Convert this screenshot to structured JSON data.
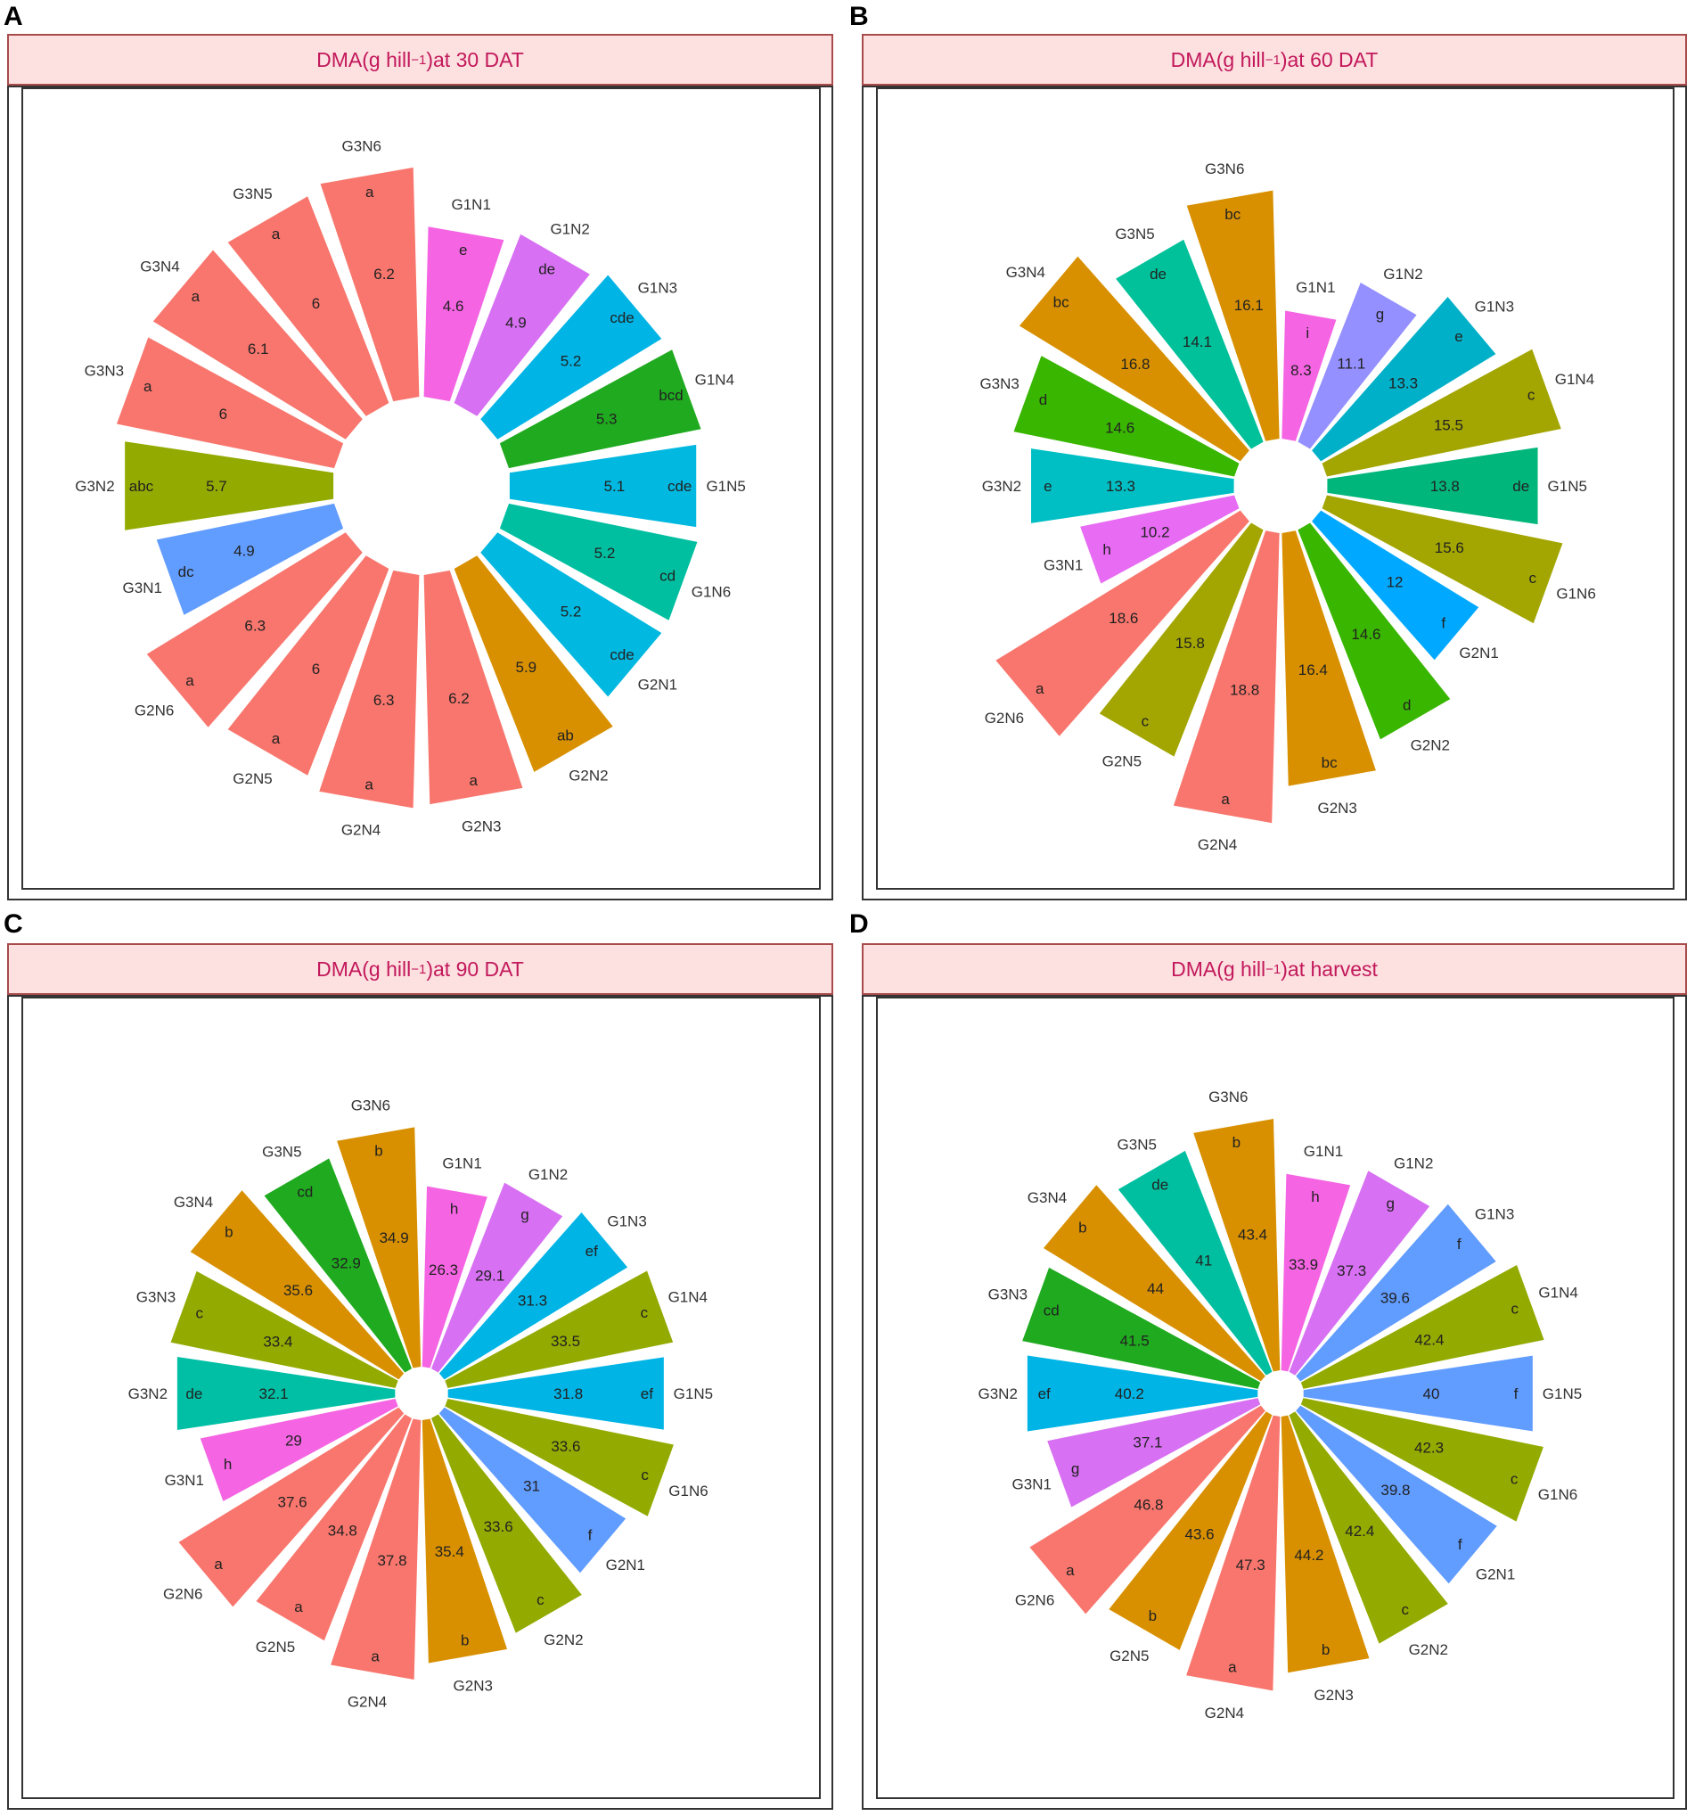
{
  "panels": [
    {
      "letter": "A",
      "title_main": "DMA(g hill",
      "title_sup": "−1",
      "title_tail": ")at 30 DAT"
    },
    {
      "letter": "B",
      "title_main": "DMA(g hill",
      "title_sup": "−1",
      "title_tail": ")at 60 DAT"
    },
    {
      "letter": "C",
      "title_main": "DMA(g hill",
      "title_sup": "−1",
      "title_tail": ")at 90 DAT"
    },
    {
      "letter": "D",
      "title_main": "DMA(g hill",
      "title_sup": "−1",
      "title_tail": ")at harvest"
    }
  ],
  "chart_data": [
    {
      "type": "bar",
      "polar": true,
      "categories": [
        "G1N1",
        "G1N2",
        "G1N3",
        "G1N4",
        "G1N5",
        "G1N6",
        "G2N1",
        "G2N2",
        "G2N3",
        "G2N4",
        "G2N5",
        "G2N6",
        "G3N1",
        "G3N2",
        "G3N3",
        "G3N4",
        "G3N5",
        "G3N6"
      ],
      "values": [
        4.6,
        4.9,
        5.2,
        5.3,
        5.1,
        5.2,
        5.2,
        5.9,
        6.2,
        6.3,
        6,
        6.3,
        4.9,
        5.7,
        6,
        6.1,
        6,
        6.2
      ],
      "value_labels": [
        "4.6",
        "4.9",
        "5.2",
        "5.3",
        "5.1",
        "5.2",
        "5.2",
        "5.9",
        "6.2",
        "6.3",
        "6",
        "6.3",
        "4.9",
        "5.7",
        "6",
        "6.1",
        "6",
        "6.2"
      ],
      "letters": [
        "e",
        "de",
        "cde",
        "bcd",
        "cde",
        "cd",
        "cde",
        "ab",
        "a",
        "a",
        "a",
        "a",
        "dc",
        "abc",
        "a",
        "a",
        "a",
        "a"
      ],
      "colors": [
        "#f564e3",
        "#d770f2",
        "#00b4e5",
        "#1faa1f",
        "#00b8e0",
        "#00bfa0",
        "#00b8e0",
        "#d89000",
        "#f8766d",
        "#f8766d",
        "#f8766d",
        "#f8766d",
        "#619cff",
        "#93aa00",
        "#f8766d",
        "#f8766d",
        "#f8766d",
        "#f8766d"
      ],
      "title": "DMA(g hill−1)at 30 DAT"
    },
    {
      "type": "bar",
      "polar": true,
      "categories": [
        "G1N1",
        "G1N2",
        "G1N3",
        "G1N4",
        "G1N5",
        "G1N6",
        "G2N1",
        "G2N2",
        "G2N3",
        "G2N4",
        "G2N5",
        "G2N6",
        "G3N1",
        "G3N2",
        "G3N3",
        "G3N4",
        "G3N5",
        "G3N6"
      ],
      "values": [
        8.3,
        11.1,
        13.3,
        15.5,
        13.8,
        15.6,
        12,
        14.6,
        16.4,
        18.8,
        15.8,
        18.6,
        10.2,
        13.3,
        14.6,
        16.8,
        14.1,
        16.1
      ],
      "value_labels": [
        "8.3",
        "11.1",
        "13.3",
        "15.5",
        "13.8",
        "15.6",
        "12",
        "14.6",
        "16.4",
        "18.8",
        "15.8",
        "18.6",
        "10.2",
        "13.3",
        "14.6",
        "16.8",
        "14.1",
        "16.1"
      ],
      "letters": [
        "i",
        "g",
        "e",
        "c",
        "de",
        "c",
        "f",
        "d",
        "bc",
        "a",
        "c",
        "a",
        "h",
        "e",
        "d",
        "bc",
        "de",
        "bc"
      ],
      "colors": [
        "#f564e3",
        "#9590ff",
        "#00b0c8",
        "#a3a500",
        "#00b67a",
        "#a3a500",
        "#00a9ff",
        "#39b600",
        "#d89000",
        "#f8766d",
        "#a3a500",
        "#f8766d",
        "#e76bf3",
        "#00bfc4",
        "#39b600",
        "#d89000",
        "#00c19a",
        "#d89000"
      ],
      "title": "DMA(g hill−1)at 60 DAT"
    },
    {
      "type": "bar",
      "polar": true,
      "categories": [
        "G1N1",
        "G1N2",
        "G1N3",
        "G1N4",
        "G1N5",
        "G1N6",
        "G2N1",
        "G2N2",
        "G2N3",
        "G2N4",
        "G2N5",
        "G2N6",
        "G3N1",
        "G3N2",
        "G3N3",
        "G3N4",
        "G3N5",
        "G3N6"
      ],
      "values": [
        26.3,
        29.1,
        31.3,
        33.5,
        31.8,
        33.6,
        31,
        33.6,
        35.4,
        37.8,
        34.8,
        37.6,
        29,
        32.1,
        33.4,
        35.6,
        32.9,
        34.9
      ],
      "value_labels": [
        "26.3",
        "29.1",
        "31.3",
        "33.5",
        "31.8",
        "33.6",
        "31",
        "33.6",
        "35.4",
        "37.8",
        "34.8",
        "37.6",
        "29",
        "32.1",
        "33.4",
        "35.6",
        "32.9",
        "34.9"
      ],
      "letters": [
        "h",
        "g",
        "ef",
        "c",
        "ef",
        "c",
        "f",
        "c",
        "b",
        "a",
        "a",
        "a",
        "h",
        "de",
        "c",
        "b",
        "cd",
        "b"
      ],
      "colors": [
        "#f564e3",
        "#d770f2",
        "#00b4e5",
        "#93aa00",
        "#00b4e5",
        "#93aa00",
        "#619cff",
        "#93aa00",
        "#d89000",
        "#f8766d",
        "#f8766d",
        "#f8766d",
        "#f564e3",
        "#00bfa4",
        "#93aa00",
        "#d89000",
        "#1faa1f",
        "#d89000"
      ],
      "title": "DMA(g hill−1)at 90 DAT"
    },
    {
      "type": "bar",
      "polar": true,
      "categories": [
        "G1N1",
        "G1N2",
        "G1N3",
        "G1N4",
        "G1N5",
        "G1N6",
        "G2N1",
        "G2N2",
        "G2N3",
        "G2N4",
        "G2N5",
        "G2N6",
        "G3N1",
        "G3N2",
        "G3N3",
        "G3N4",
        "G3N5",
        "G3N6"
      ],
      "values": [
        33.9,
        37.3,
        39.6,
        42.4,
        40,
        42.3,
        39.8,
        42.4,
        44.2,
        47.3,
        43.6,
        46.8,
        37.1,
        40.2,
        41.5,
        44,
        41,
        43.4
      ],
      "value_labels": [
        "33.9",
        "37.3",
        "39.6",
        "42.4",
        "40",
        "42.3",
        "39.8",
        "42.4",
        "44.2",
        "47.3",
        "43.6",
        "46.8",
        "37.1",
        "40.2",
        "41.5",
        "44",
        "41",
        "43.4"
      ],
      "letters": [
        "h",
        "g",
        "f",
        "c",
        "f",
        "c",
        "f",
        "c",
        "b",
        "a",
        "b",
        "a",
        "g",
        "ef",
        "cd",
        "b",
        "de",
        "b"
      ],
      "colors": [
        "#f564e3",
        "#d770f2",
        "#619cff",
        "#93aa00",
        "#619cff",
        "#93aa00",
        "#619cff",
        "#93aa00",
        "#d89000",
        "#f8766d",
        "#d89000",
        "#f8766d",
        "#d770f2",
        "#00b4e5",
        "#1faa1f",
        "#d89000",
        "#00bfa0",
        "#d89000"
      ],
      "title": "DMA(g hill−1)at harvest"
    }
  ]
}
